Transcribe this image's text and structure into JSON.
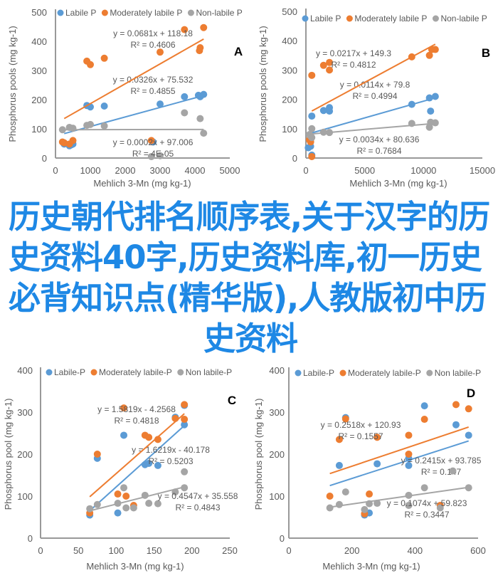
{
  "overlay_title": "历史朝代排名顺序表,关于汉字的历史资料40字,历史资料库,初一历史必背知识点(精华版),人教版初中历史资料",
  "colors": {
    "labile": "#5b9bd5",
    "moderate": "#ed7d31",
    "nonlabile": "#a5a5a5",
    "axis": "#999999",
    "text": "#595959"
  },
  "chart_data": [
    {
      "type": "scatter",
      "panel": "A",
      "ylabel": "Phosphorus pools (mg kg-1)",
      "xlabel": "Mehlich 3-Mn (mg kg-1)",
      "xlim": [
        0,
        5000
      ],
      "ylim": [
        0,
        500
      ],
      "xticks": [
        0,
        1000,
        2000,
        3000,
        4000,
        5000
      ],
      "yticks": [
        0,
        100,
        200,
        300,
        400,
        500
      ],
      "legend": [
        "Labile P",
        "Moderately labile P",
        "Non-labile P"
      ],
      "series": [
        {
          "name": "Labile P",
          "key": "labile",
          "x": [
            250,
            400,
            450,
            500,
            900,
            1000,
            1400,
            2800,
            3000,
            3700,
            4100,
            4150,
            4250
          ],
          "y": [
            48,
            42,
            45,
            48,
            180,
            175,
            178,
            55,
            185,
            210,
            215,
            210,
            218
          ],
          "trend": {
            "slope": 0.0326,
            "intercept": 75.532,
            "x_range": [
              250,
              4250
            ],
            "equation": "y = 0.0326x + 75.532",
            "r2": "R² = 0.4855"
          }
        },
        {
          "name": "Moderately labile P",
          "key": "moderate",
          "x": [
            200,
            250,
            400,
            500,
            900,
            1000,
            1400,
            2750,
            3000,
            3700,
            4130,
            4150,
            4250
          ],
          "y": [
            55,
            52,
            48,
            60,
            332,
            320,
            342,
            60,
            363,
            440,
            368,
            378,
            447
          ],
          "trend": {
            "slope": 0.0681,
            "intercept": 118.18,
            "x_range": [
              250,
              4250
            ],
            "equation": "y = 0.0681x + 118.18",
            "r2": "R² = 0.4606"
          }
        },
        {
          "name": "Non-labile P",
          "key": "nonlabile",
          "x": [
            200,
            400,
            500,
            900,
            1000,
            1400,
            2750,
            3000,
            3700,
            4150,
            4250
          ],
          "y": [
            97,
            105,
            102,
            112,
            115,
            110,
            5,
            8,
            155,
            135,
            85
          ],
          "trend": {
            "slope": 0.0002,
            "intercept": 97.006,
            "x_range": [
              250,
              4250
            ],
            "equation": "y = 0.0002x + 97.006",
            "r2": "R² = 4E-05"
          }
        }
      ]
    },
    {
      "type": "scatter",
      "panel": "B",
      "ylabel": "Phosphorus pools (mg kg-1)",
      "xlabel": "Mehlich 3-Mn (mg kg-1)",
      "xlim": [
        0,
        15000
      ],
      "ylim": [
        0,
        500
      ],
      "xticks": [
        0,
        5000,
        10000,
        15000
      ],
      "yticks": [
        0,
        100,
        200,
        300,
        400,
        500
      ],
      "legend": [
        "Labile P",
        "Moderately labile P",
        "Non-labile P"
      ],
      "series": [
        {
          "name": "Labile P",
          "key": "labile",
          "x": [
            200,
            400,
            500,
            500,
            1500,
            2000,
            2000,
            9000,
            10500,
            10600,
            11000
          ],
          "y": [
            35,
            40,
            143,
            10,
            162,
            172,
            160,
            183,
            205,
            160,
            210
          ],
          "trend": {
            "slope": 0.0114,
            "intercept": 79.8,
            "x_range": [
              500,
              11000
            ],
            "equation": "y = 0.0114x + 79.8",
            "r2": "R² = 0.4994"
          }
        },
        {
          "name": "Moderately labile P",
          "key": "moderate",
          "x": [
            300,
            400,
            500,
            500,
            1500,
            2000,
            2000,
            9000,
            10500,
            10700,
            11000
          ],
          "y": [
            62,
            55,
            282,
            5,
            316,
            326,
            300,
            345,
            350,
            370,
            370
          ],
          "trend": {
            "slope": 0.0217,
            "intercept": 149.3,
            "x_range": [
              500,
              11000
            ],
            "equation": "y = 0.0217x + 149.3",
            "r2": "R² = 0.4812"
          }
        },
        {
          "name": "Non-labile P",
          "key": "nonlabile",
          "x": [
            300,
            400,
            500,
            500,
            1500,
            2000,
            9000,
            10500,
            10600,
            11000
          ],
          "y": [
            80,
            75,
            100,
            70,
            88,
            87,
            118,
            105,
            122,
            120
          ],
          "trend": {
            "slope": 0.0034,
            "intercept": 80.636,
            "x_range": [
              500,
              11000
            ],
            "equation": "y = 0.0034x + 80.636",
            "r2": "R² = 0.7684"
          }
        }
      ]
    },
    {
      "type": "scatter",
      "panel": "C",
      "ylabel": "Phosphorus pool (mg kg-1)",
      "xlabel": "Mehlich 3-Mn (mg kg-1)",
      "xlim": [
        0,
        250
      ],
      "ylim": [
        0,
        400
      ],
      "xticks": [
        0,
        50,
        100,
        150,
        200,
        250
      ],
      "yticks": [
        0,
        100,
        200,
        300,
        400
      ],
      "legend": [
        "Labile-P",
        "Moderately labile-P",
        "Non labile-P"
      ],
      "series": [
        {
          "name": "Labile-P",
          "key": "labile",
          "x": [
            65,
            75,
            102,
            110,
            138,
            143,
            155,
            178,
            190,
            190
          ],
          "y": [
            55,
            190,
            60,
            245,
            175,
            178,
            173,
            288,
            270,
            316
          ],
          "trend": {
            "slope": 1.6219,
            "intercept": -40.178,
            "x_range": [
              65,
              190
            ],
            "equation": "y = 1.6219x - 40.178",
            "r2": "R² = 0.5203"
          }
        },
        {
          "name": "Moderately labile-P",
          "key": "moderate",
          "x": [
            65,
            75,
            102,
            110,
            113,
            123,
            138,
            143,
            155,
            178,
            190,
            190
          ],
          "y": [
            60,
            200,
            105,
            310,
            100,
            78,
            245,
            240,
            235,
            285,
            283,
            318
          ],
          "trend": {
            "slope": 1.5819,
            "intercept": -4.2568,
            "x_range": [
              65,
              190
            ],
            "equation": "y = 1.5819x - 4.2568",
            "r2": "R² = 0.4818"
          }
        },
        {
          "name": "Non labile-P",
          "key": "nonlabile",
          "x": [
            65,
            75,
            102,
            110,
            113,
            123,
            138,
            143,
            155,
            178,
            190,
            190
          ],
          "y": [
            70,
            80,
            83,
            120,
            72,
            72,
            102,
            83,
            82,
            110,
            120,
            158
          ],
          "trend": {
            "slope": 0.4547,
            "intercept": 35.558,
            "x_range": [
              65,
              190
            ],
            "equation": "y = 0.4547x + 35.558",
            "r2": "R² = 0.4843"
          }
        }
      ]
    },
    {
      "type": "scatter",
      "panel": "D",
      "ylabel": "Phosphorus pool (mg kg-1)",
      "xlabel": "Mehlich 3-Mn (mg kg-1)",
      "xlim": [
        0,
        600
      ],
      "ylim": [
        0,
        400
      ],
      "xticks": [
        0,
        200,
        400,
        600
      ],
      "yticks": [
        0,
        100,
        200,
        300,
        400
      ],
      "legend": [
        "Labile-P",
        "Moderately labile-P",
        "Non labile-P"
      ],
      "series": [
        {
          "name": "Labile-P",
          "key": "labile",
          "x": [
            160,
            180,
            240,
            255,
            280,
            380,
            380,
            430,
            530,
            570
          ],
          "y": [
            173,
            287,
            55,
            60,
            177,
            173,
            190,
            315,
            270,
            245
          ],
          "trend": {
            "slope": 0.2415,
            "intercept": 93.785,
            "x_range": [
              130,
              570
            ],
            "equation": "y = 0.2415x + 93.785",
            "r2": "R² = 0.147"
          }
        },
        {
          "name": "Moderately labile-P",
          "key": "moderate",
          "x": [
            130,
            160,
            180,
            240,
            255,
            280,
            380,
            380,
            430,
            480,
            530,
            570
          ],
          "y": [
            100,
            235,
            284,
            58,
            105,
            240,
            245,
            200,
            283,
            78,
            318,
            308
          ],
          "trend": {
            "slope": 0.2518,
            "intercept": 120.93,
            "x_range": [
              130,
              570
            ],
            "equation": "y = 0.2518x + 120.93",
            "r2": "R² = 0.1557"
          }
        },
        {
          "name": "Non labile-P",
          "key": "nonlabile",
          "x": [
            130,
            160,
            180,
            240,
            255,
            280,
            380,
            380,
            430,
            480,
            520,
            570
          ],
          "y": [
            72,
            80,
            110,
            68,
            82,
            83,
            102,
            78,
            120,
            72,
            160,
            120
          ],
          "trend": {
            "slope": 0.1074,
            "intercept": 59.823,
            "x_range": [
              130,
              570
            ],
            "equation": "y = 0.1074x + 59.823",
            "r2": "R² = 0.3447"
          }
        }
      ]
    }
  ]
}
